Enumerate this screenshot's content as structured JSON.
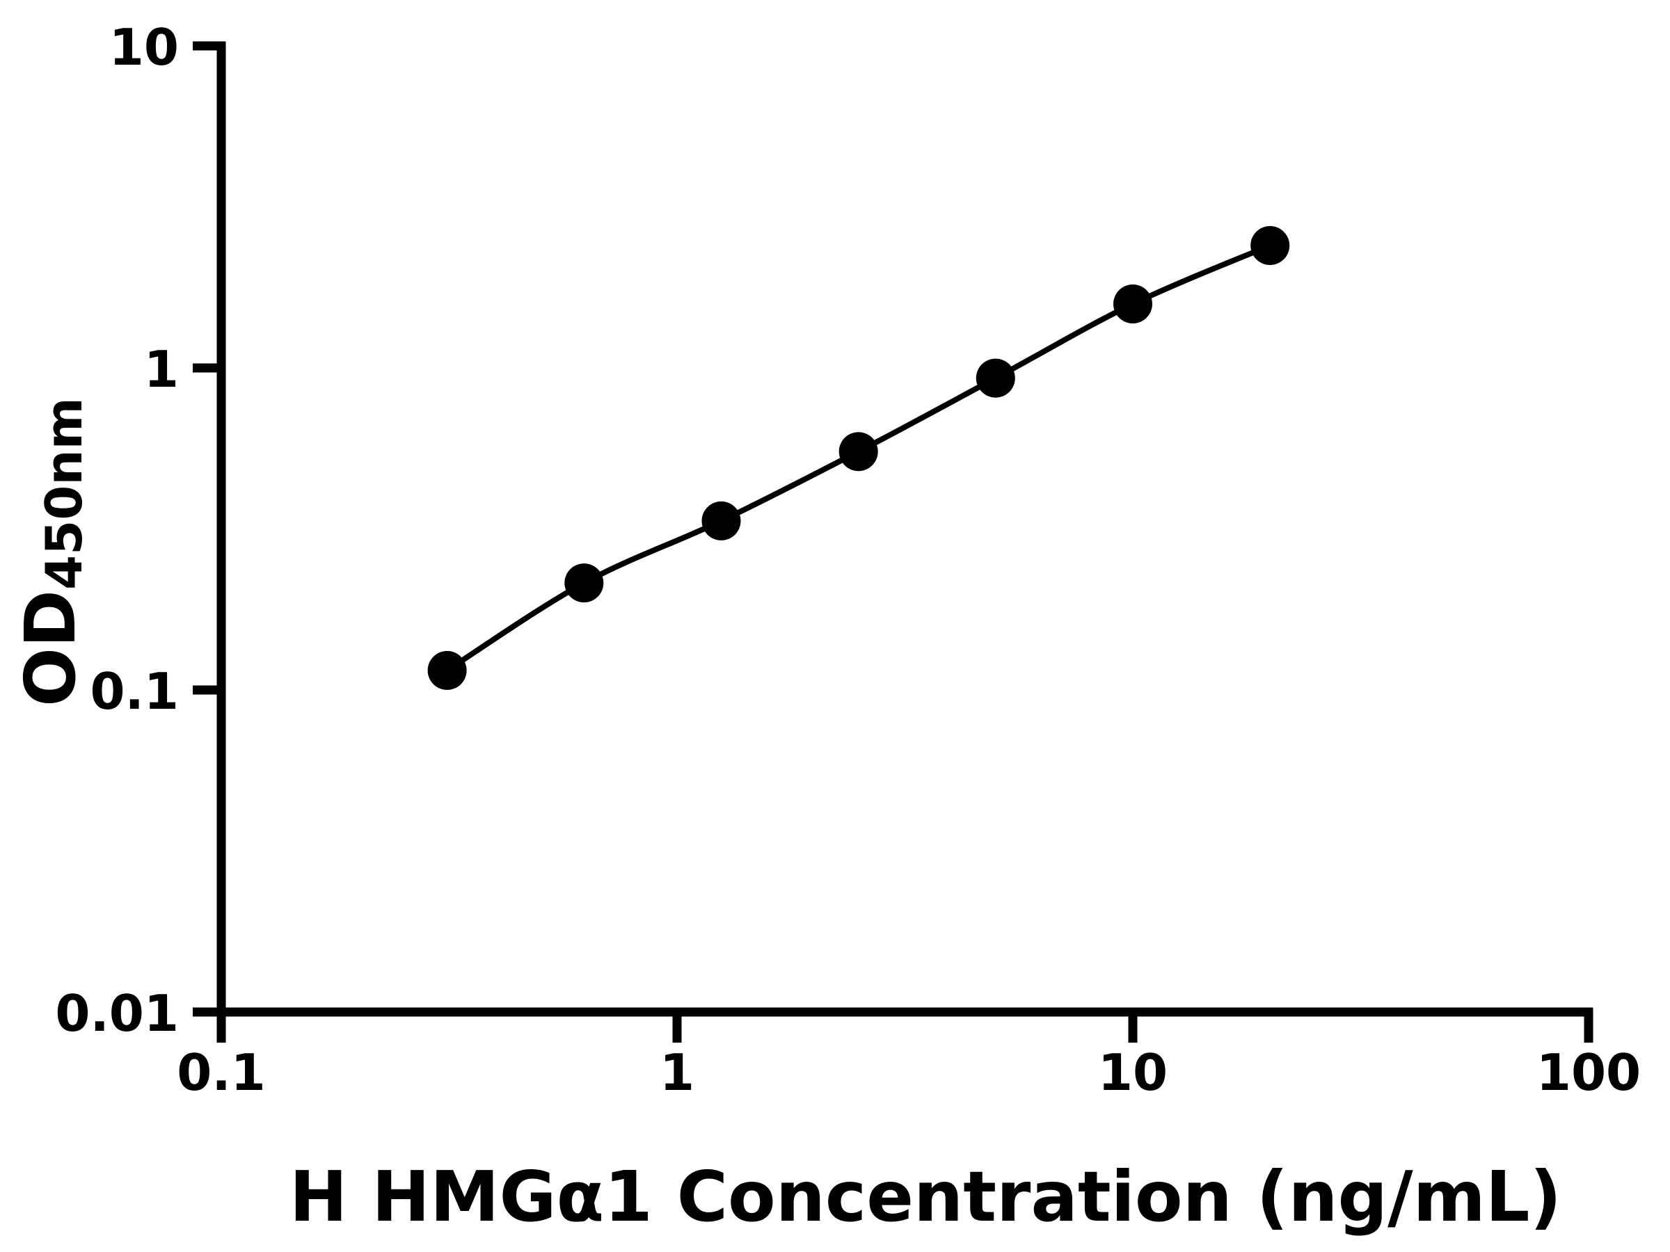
{
  "chart_data": {
    "type": "scatter-line",
    "title": "",
    "xlabel": "H HMGα1 Concentration (ng/mL)",
    "ylabel": {
      "main": "OD",
      "subscript": "450nm"
    },
    "x_scale": "log10",
    "y_scale": "log10",
    "xlim": [
      0.1,
      100
    ],
    "ylim": [
      0.01,
      10
    ],
    "grid": "off",
    "legend": "none",
    "x_ticks": {
      "values": [
        0.1,
        1,
        10,
        100
      ],
      "labels": [
        "0.1",
        "1",
        "10",
        "100"
      ]
    },
    "y_ticks": {
      "values": [
        10,
        1,
        0.1,
        0.01
      ],
      "labels": [
        "10",
        "1",
        "0.1",
        "0.01"
      ]
    },
    "series": [
      {
        "marker": "filled-circle",
        "line": "smooth-fit",
        "points": {
          "x_ng_per_mL": [
            0.313,
            0.625,
            1.25,
            2.5,
            5,
            10,
            20
          ],
          "y_od450": [
            0.115,
            0.215,
            0.335,
            0.55,
            0.93,
            1.58,
            2.4
          ]
        }
      }
    ],
    "colors": {
      "foreground": "#000000",
      "background": "#ffffff"
    }
  }
}
